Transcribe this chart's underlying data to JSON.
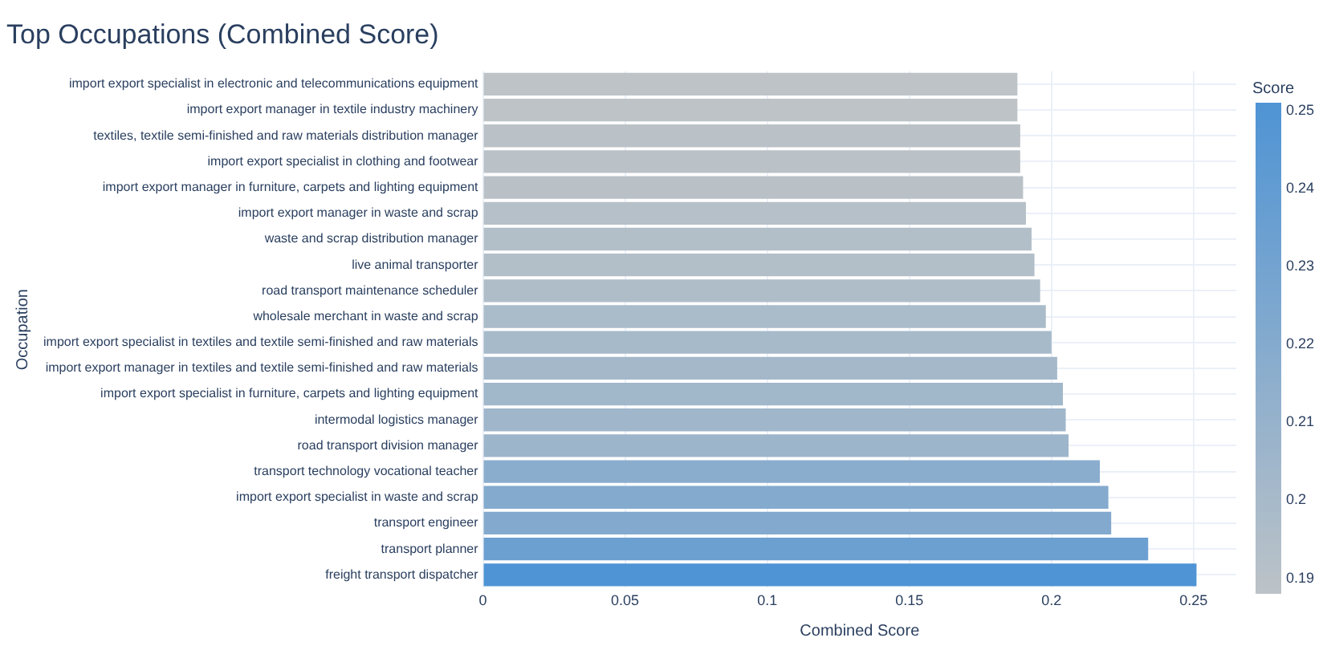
{
  "chart_data": {
    "type": "bar",
    "orientation": "horizontal",
    "title": "Top Occupations (Combined Score)",
    "xlabel": "Combined Score",
    "ylabel": "Occupation",
    "clabel": "Score",
    "categories": [
      "import export specialist in electronic and telecommunications equipment",
      "import export manager in textile industry machinery",
      "textiles, textile semi-finished and raw materials distribution manager",
      "import export specialist in clothing and footwear",
      "import export manager in furniture, carpets and lighting equipment",
      "import export manager in waste and scrap",
      "waste and scrap distribution manager",
      "live animal transporter",
      "road transport maintenance scheduler",
      "wholesale merchant in waste and scrap",
      "import export specialist in textiles and textile semi-finished and raw materials",
      "import export manager in textiles and textile semi-finished and raw materials",
      "import export specialist in furniture, carpets and lighting equipment",
      "intermodal logistics manager",
      "road transport division manager",
      "transport technology vocational teacher",
      "import export specialist in waste and scrap",
      "transport engineer",
      "transport planner",
      "freight transport dispatcher"
    ],
    "values": [
      0.188,
      0.188,
      0.189,
      0.189,
      0.19,
      0.191,
      0.193,
      0.194,
      0.196,
      0.198,
      0.2,
      0.202,
      0.204,
      0.205,
      0.206,
      0.217,
      0.22,
      0.221,
      0.234,
      0.251
    ],
    "colors": [
      "#bdc3c7",
      "#bdc3c7",
      "#bbc2c7",
      "#bbc2c7",
      "#b9c1c7",
      "#b6c0c8",
      "#b3bfc8",
      "#b2bec8",
      "#afbdc9",
      "#aabbc9",
      "#a7baca",
      "#a4b8ca",
      "#a1b7ca",
      "#9fb6cb",
      "#9db5cb",
      "#8aadcd",
      "#84abce",
      "#83aace",
      "#6ca0d1",
      "#4f94d4"
    ],
    "xlim": [
      0,
      0.265
    ],
    "xticks": [
      0,
      0.05,
      0.1,
      0.15,
      0.2,
      0.25
    ],
    "clim": [
      0.188,
      0.251
    ],
    "cticks": [
      0.19,
      0.2,
      0.21,
      0.22,
      0.23,
      0.24,
      0.25
    ],
    "grid": true
  }
}
